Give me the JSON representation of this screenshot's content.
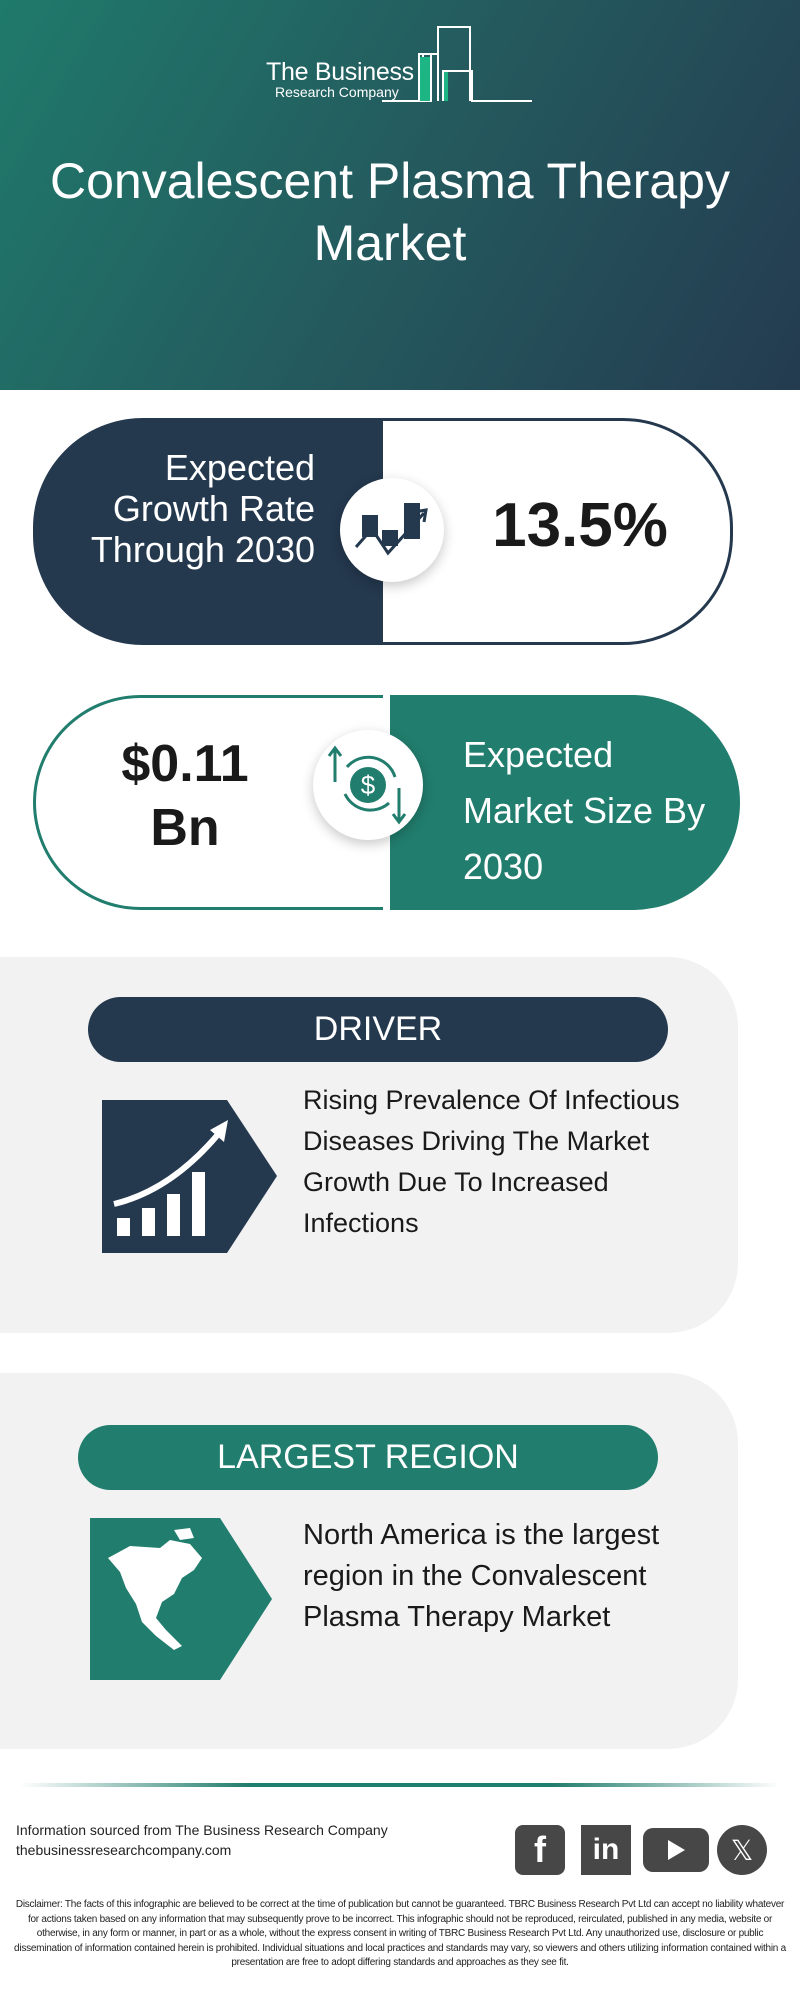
{
  "header": {
    "logo_line1": "The Business",
    "logo_line2": "Research Company",
    "title": "Convalescent Plasma Therapy Market"
  },
  "growth": {
    "label": "Expected Growth Rate Through 2030",
    "value": "13.5%",
    "icon": "growth-chart-icon"
  },
  "market_size": {
    "value": "$0.11 Bn",
    "label": "Expected Market Size By 2030",
    "icon": "dollar-exchange-icon"
  },
  "driver": {
    "heading": "DRIVER",
    "text": "Rising Prevalence Of Infectious Diseases Driving The Market Growth Due To Increased Infections",
    "icon": "rising-bar-chart-icon"
  },
  "region": {
    "heading": "LARGEST REGION",
    "text": "North America is the largest region in the Convalescent Plasma Therapy Market",
    "icon": "north-america-map-icon"
  },
  "footer": {
    "source": "Information sourced from The Business Research Company",
    "website": "thebusinessresearchcompany.com",
    "social": [
      "facebook",
      "linkedin",
      "youtube",
      "x"
    ],
    "disclaimer": "Disclaimer: The facts of this infographic are believed to be correct at the time of publication but cannot be guaranteed. TBRC Business Research Pvt Ltd can accept no liability whatever for actions taken based on any information that may subsequently prove to be incorrect. This infographic should not be reproduced, reirculated, published in any media, website or otherwise, in any form or manner, in part or as a whole, without the express consent in writing of TBRC Business Research Pvt Ltd. Any unauthorized use, disclosure or public dissemination of information contained herein is prohibited. Individual situations and local practices and standards may vary, so viewers and others utilizing information contained within a presentation are free to adopt differing standards and approaches as they see fit."
  },
  "colors": {
    "navy": "#24384e",
    "teal": "#217d6d",
    "accent_green": "#1db584",
    "panel_gray": "#f2f2f2"
  }
}
